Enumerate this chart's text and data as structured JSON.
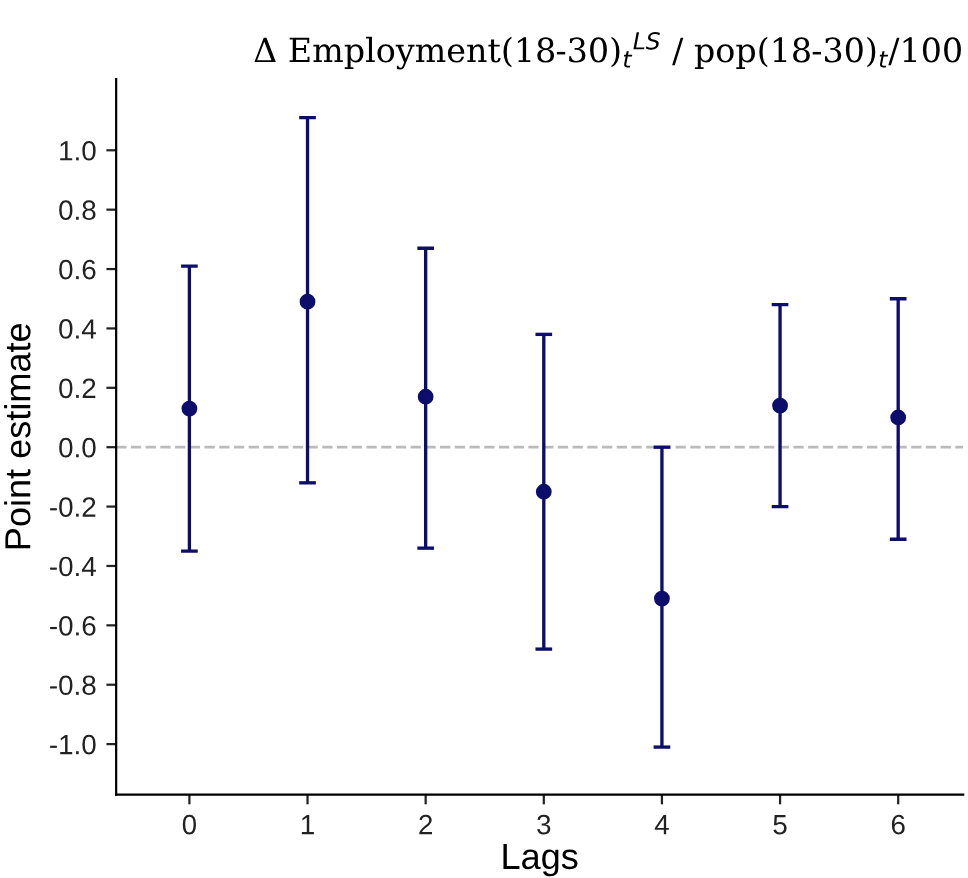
{
  "chart_data": {
    "type": "scatter",
    "title": "Δ Employment(18-30)$_{t}$$^{LS}$ / pop(18-30)$_{t}$/100",
    "xlabel": "Lags",
    "ylabel": "Point estimate",
    "categories": [
      "0",
      "1",
      "2",
      "3",
      "4",
      "5",
      "6"
    ],
    "series": [
      {
        "color": "#0d0d6b",
        "values": [
          0.13,
          0.49,
          0.17,
          -0.15,
          -0.51,
          0.14,
          0.1
        ],
        "errors": [
          [
            -0.35,
            0.61
          ],
          [
            -0.12,
            1.11
          ],
          [
            -0.34,
            0.67
          ],
          [
            -0.68,
            0.38
          ],
          [
            -1.01,
            0.0
          ],
          [
            -0.2,
            0.48
          ],
          [
            -0.31,
            0.5
          ]
        ]
      }
    ],
    "ylim": [
      -1.17,
      1.24
    ],
    "yticks": [
      {
        "value": -1.0,
        "label": "-1.0"
      },
      -0.8,
      -0.6,
      -0.4,
      -0.2,
      {
        "value": 0.0,
        "label": "0.0"
      },
      0.2,
      0.4,
      0.6,
      0.8,
      {
        "value": 1.0,
        "label": "1.0"
      }
    ],
    "ref_lines": [
      {
        "axis": "y",
        "value": 0,
        "color": "#bbbbbb",
        "line_style": "dashed"
      }
    ],
    "grid": false,
    "marker": "circle"
  }
}
